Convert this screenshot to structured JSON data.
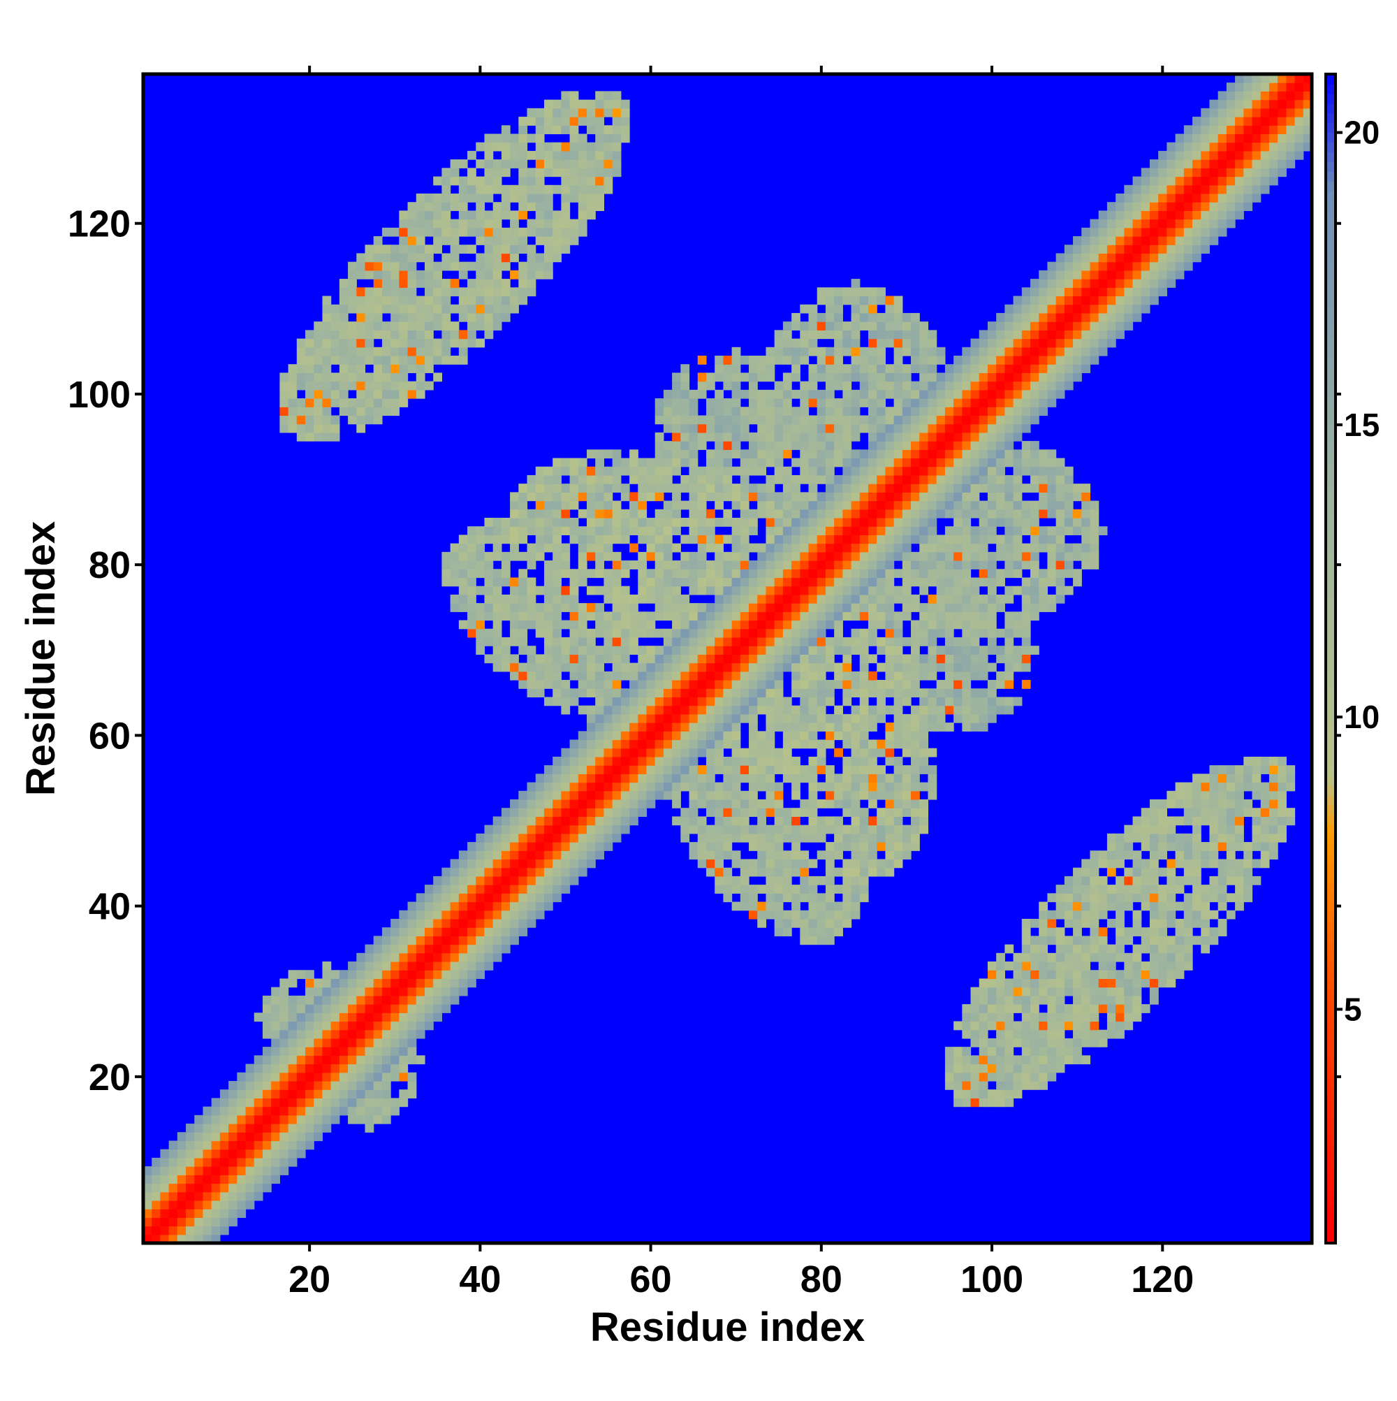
{
  "chart_data": {
    "type": "heatmap",
    "title": "",
    "xlabel": "Residue index",
    "ylabel": "Residue index",
    "n_residues": 137,
    "xlim": [
      1,
      137
    ],
    "ylim": [
      1,
      137
    ],
    "x_ticks": [
      20,
      40,
      60,
      80,
      100,
      120
    ],
    "y_ticks": [
      20,
      40,
      60,
      80,
      100,
      120
    ],
    "colorbar": {
      "ticks": [
        5,
        10,
        15,
        20
      ],
      "range": [
        1,
        21
      ],
      "stops": [
        {
          "value": 1,
          "color": "#ff0000"
        },
        {
          "value": 5,
          "color": "#ff4400"
        },
        {
          "value": 8,
          "color": "#ff9900"
        },
        {
          "value": 9,
          "color": "#b8c38a"
        },
        {
          "value": 14,
          "color": "#9cb3a0"
        },
        {
          "value": 19,
          "color": "#6f8fb8"
        },
        {
          "value": 21,
          "color": "#0000ff"
        }
      ],
      "background_color": "#0000ff"
    },
    "description_of_values": "pairwise distance map, symmetric about the diagonal",
    "features": {
      "diagonal_band_halfwidth": 8,
      "contact_regions": [
        {
          "cx": 37,
          "cy": 115,
          "rx": 28,
          "ry": 9,
          "angle": -45,
          "value_min": 7,
          "value_max": 15
        },
        {
          "cx": 115,
          "cy": 37,
          "rx": 28,
          "ry": 9,
          "angle": -45,
          "value_min": 7,
          "value_max": 15
        },
        {
          "cx": 84,
          "cy": 97,
          "rx": 12,
          "ry": 16,
          "angle": 0,
          "value_min": 8,
          "value_max": 16
        },
        {
          "cx": 97,
          "cy": 84,
          "rx": 16,
          "ry": 12,
          "angle": 0,
          "value_min": 8,
          "value_max": 16
        },
        {
          "cx": 62,
          "cy": 80,
          "rx": 20,
          "ry": 12,
          "angle": -20,
          "value_min": 6,
          "value_max": 15
        },
        {
          "cx": 80,
          "cy": 62,
          "rx": 12,
          "ry": 20,
          "angle": -20,
          "value_min": 6,
          "value_max": 15
        },
        {
          "cx": 70,
          "cy": 95,
          "rx": 10,
          "ry": 10,
          "angle": 0,
          "value_min": 9,
          "value_max": 16
        },
        {
          "cx": 95,
          "cy": 70,
          "rx": 10,
          "ry": 10,
          "angle": 0,
          "value_min": 9,
          "value_max": 16
        },
        {
          "cx": 52,
          "cy": 73,
          "rx": 18,
          "ry": 10,
          "angle": -30,
          "value_min": 8,
          "value_max": 15
        },
        {
          "cx": 73,
          "cy": 52,
          "rx": 10,
          "ry": 18,
          "angle": -30,
          "value_min": 8,
          "value_max": 15
        },
        {
          "cx": 22,
          "cy": 27,
          "rx": 8,
          "ry": 6,
          "angle": 0,
          "value_min": 9,
          "value_max": 15
        },
        {
          "cx": 27,
          "cy": 22,
          "rx": 6,
          "ry": 8,
          "angle": 0,
          "value_min": 9,
          "value_max": 15
        }
      ]
    },
    "grid": false,
    "legend": "colorbar-right"
  }
}
